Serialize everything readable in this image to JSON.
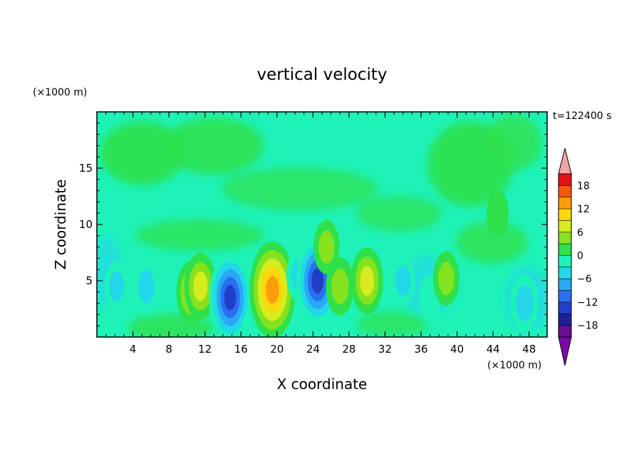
{
  "chart_data": {
    "type": "heatmap",
    "title": "vertical velocity",
    "xlabel": "X coordinate",
    "ylabel": "Z coordinate",
    "x_unit": "(×1000 m)",
    "y_unit": "(×1000 m)",
    "time_label": "t=122400 s",
    "xlim": [
      0,
      50
    ],
    "ylim": [
      0,
      20
    ],
    "x_ticks": [
      "4",
      "8",
      "12",
      "16",
      "20",
      "24",
      "28",
      "32",
      "36",
      "40",
      "44",
      "48"
    ],
    "y_ticks": [
      "5",
      "10",
      "15"
    ],
    "colorbar": {
      "range": [
        -21,
        21
      ],
      "tick_labels": [
        "18",
        "12",
        "6",
        "0",
        "−6",
        "−12",
        "−18"
      ],
      "tick_values": [
        18,
        12,
        6,
        0,
        -6,
        -12,
        -18
      ],
      "levels": [
        -18,
        -15,
        -12,
        -9,
        -6,
        -3,
        0,
        3,
        6,
        9,
        12,
        15,
        18
      ],
      "colors": [
        "#6a0d91",
        "#1f1f96",
        "#1f3fc4",
        "#2a6ff0",
        "#2aa8f5",
        "#22d8e8",
        "#1ef2b8",
        "#2fe04a",
        "#86e21e",
        "#d6ec1e",
        "#fcd70e",
        "#fb9d0a",
        "#f6590c",
        "#e3121a",
        "#f2a5a5"
      ],
      "under_color": "#7b0aa8",
      "over_color": "#f4a3a3"
    },
    "features": [
      {
        "x": 2.2,
        "z": 4.5,
        "value": -5
      },
      {
        "x": 5.5,
        "z": 4.5,
        "value": -6
      },
      {
        "x": 10.5,
        "z": 4.0,
        "value": 8
      },
      {
        "x": 11.5,
        "z": 4.5,
        "value": 9
      },
      {
        "x": 14.8,
        "z": 3.5,
        "value": -14
      },
      {
        "x": 19.5,
        "z": 4.2,
        "value": 16
      },
      {
        "x": 22.5,
        "z": 5.5,
        "value": -6
      },
      {
        "x": 24.5,
        "z": 5.0,
        "value": -14
      },
      {
        "x": 25.5,
        "z": 8.0,
        "value": 6
      },
      {
        "x": 27.0,
        "z": 4.5,
        "value": 7
      },
      {
        "x": 30.0,
        "z": 5.0,
        "value": 9
      },
      {
        "x": 34.0,
        "z": 5.0,
        "value": -5
      },
      {
        "x": 37.0,
        "z": 3.5,
        "value": -4
      },
      {
        "x": 38.8,
        "z": 5.2,
        "value": 6
      },
      {
        "x": 44.5,
        "z": 11.0,
        "value": 4
      },
      {
        "x": 47.5,
        "z": 3.0,
        "value": -7
      }
    ]
  }
}
